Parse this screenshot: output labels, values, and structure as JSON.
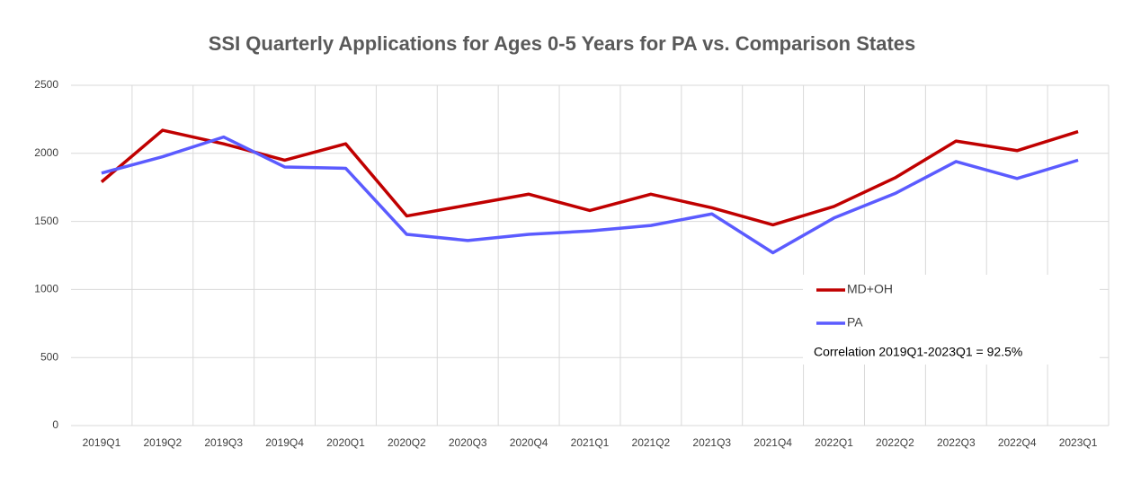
{
  "chart_data": {
    "type": "line",
    "title": "SSI Quarterly Applications for Ages 0-5 Years for PA vs. Comparison States",
    "categories": [
      "2019Q1",
      "2019Q2",
      "2019Q3",
      "2019Q4",
      "2020Q1",
      "2020Q2",
      "2020Q3",
      "2020Q4",
      "2021Q1",
      "2021Q2",
      "2021Q3",
      "2021Q4",
      "2022Q1",
      "2022Q2",
      "2022Q3",
      "2022Q4",
      "2023Q1"
    ],
    "series": [
      {
        "name": "MD+OH",
        "color": "#c00000",
        "values": [
          1790,
          2170,
          2070,
          1950,
          2070,
          1540,
          1620,
          1700,
          1580,
          1700,
          1600,
          1475,
          1610,
          1820,
          2090,
          2020,
          2160
        ]
      },
      {
        "name": "PA",
        "color": "#5b5bff",
        "values": [
          1855,
          1975,
          2120,
          1900,
          1890,
          1405,
          1360,
          1405,
          1430,
          1470,
          1555,
          1270,
          1525,
          1705,
          1940,
          1815,
          1950
        ]
      }
    ],
    "annotation": "Correlation 2019Q1-2023Q1 = 92.5%",
    "ylim": [
      0,
      2500
    ],
    "yticks": [
      0,
      500,
      1000,
      1500,
      2000,
      2500
    ],
    "grid": true
  }
}
